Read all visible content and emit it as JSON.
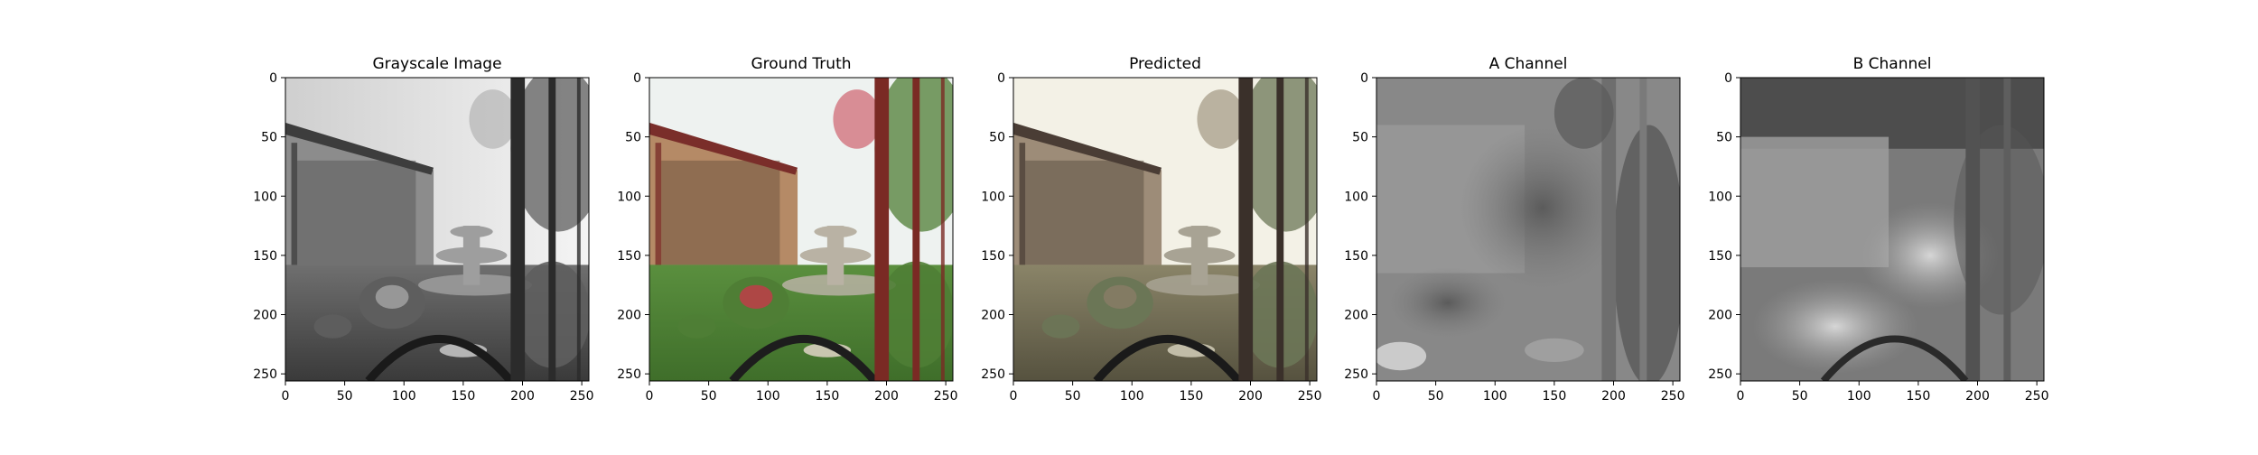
{
  "figure": {
    "panels": [
      {
        "title": "Grayscale Image"
      },
      {
        "title": "Ground Truth"
      },
      {
        "title": "Predicted"
      },
      {
        "title": "A Channel"
      },
      {
        "title": "B Channel"
      }
    ],
    "image_size": [
      256,
      256
    ],
    "axis": {
      "x_ticks": [
        0,
        50,
        100,
        150,
        200,
        250
      ],
      "y_ticks": [
        0,
        50,
        100,
        150,
        200,
        250
      ]
    }
  }
}
